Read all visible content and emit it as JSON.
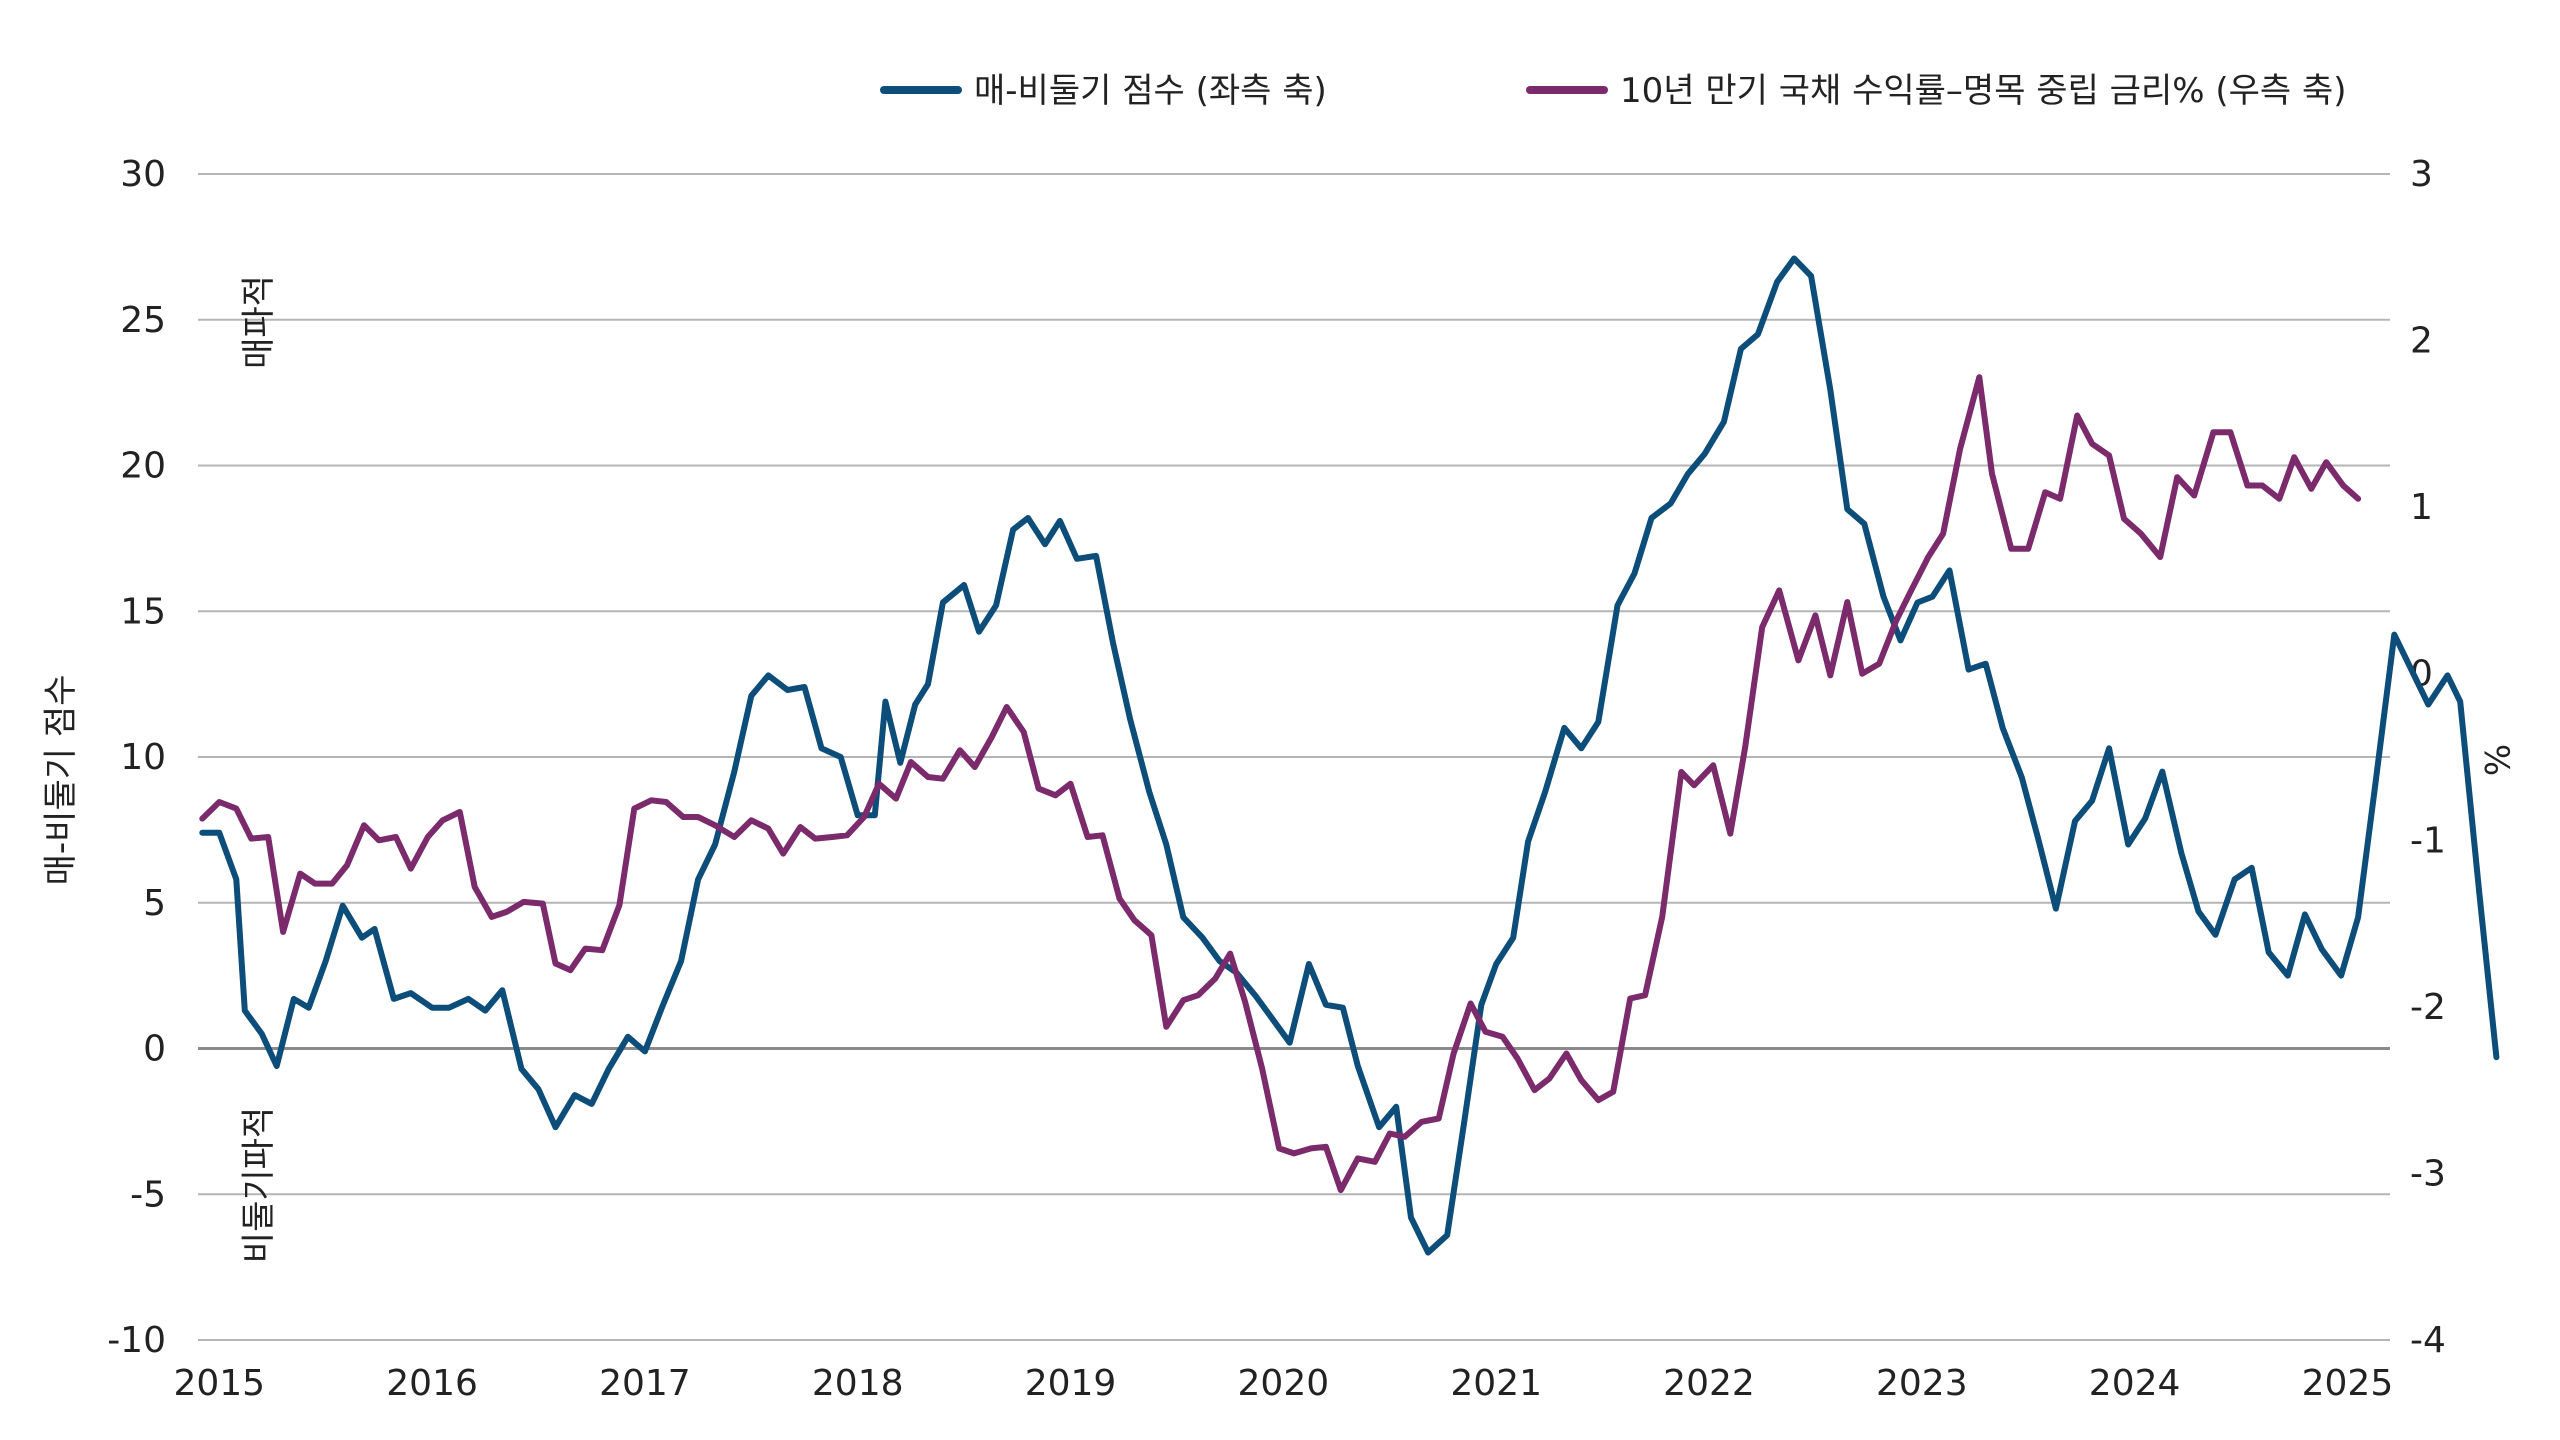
{
  "chart_data": {
    "type": "line",
    "x_ticks": [
      "2015",
      "2016",
      "2017",
      "2018",
      "2019",
      "2020",
      "2021",
      "2022",
      "2023",
      "2024",
      "2025"
    ],
    "xlim": [
      2014.9,
      2025.2
    ],
    "y_left": {
      "label": "매-비둘기 점수",
      "lim": [
        -10,
        30
      ],
      "ticks": [
        -10,
        -5,
        0,
        5,
        10,
        15,
        20,
        25,
        30
      ]
    },
    "y_right": {
      "label": "%",
      "lim": [
        -4,
        3
      ],
      "ticks": [
        -4,
        -3,
        -2,
        -1,
        0,
        1,
        2,
        3
      ]
    },
    "annotations": {
      "hawkish": "매파적",
      "dovish": "비둘기파적"
    },
    "grid": true,
    "legend_position": "top-right",
    "series": [
      {
        "name": "매-비둘기 점수 (좌측 축)",
        "axis": "left",
        "color": "#0d4d7a",
        "points": [
          [
            2014.92,
            7.4
          ],
          [
            2015.0,
            7.4
          ],
          [
            2015.08,
            5.8
          ],
          [
            2015.12,
            1.3
          ],
          [
            2015.2,
            0.5
          ],
          [
            2015.27,
            -0.6
          ],
          [
            2015.35,
            1.7
          ],
          [
            2015.42,
            1.4
          ],
          [
            2015.5,
            3.0
          ],
          [
            2015.58,
            4.9
          ],
          [
            2015.67,
            3.8
          ],
          [
            2015.73,
            4.1
          ],
          [
            2015.82,
            1.7
          ],
          [
            2015.9,
            1.9
          ],
          [
            2016.0,
            1.4
          ],
          [
            2016.08,
            1.4
          ],
          [
            2016.17,
            1.7
          ],
          [
            2016.25,
            1.3
          ],
          [
            2016.33,
            2.0
          ],
          [
            2016.42,
            -0.7
          ],
          [
            2016.5,
            -1.4
          ],
          [
            2016.58,
            -2.7
          ],
          [
            2016.67,
            -1.6
          ],
          [
            2016.75,
            -1.9
          ],
          [
            2016.83,
            -0.7
          ],
          [
            2016.92,
            0.4
          ],
          [
            2017.0,
            -0.1
          ],
          [
            2017.08,
            1.4
          ],
          [
            2017.17,
            3.0
          ],
          [
            2017.25,
            5.8
          ],
          [
            2017.33,
            7.0
          ],
          [
            2017.42,
            9.5
          ],
          [
            2017.5,
            12.1
          ],
          [
            2017.58,
            12.8
          ],
          [
            2017.67,
            12.3
          ],
          [
            2017.75,
            12.4
          ],
          [
            2017.83,
            10.3
          ],
          [
            2017.92,
            10.0
          ],
          [
            2018.0,
            8.0
          ],
          [
            2018.08,
            8.0
          ],
          [
            2018.13,
            11.9
          ],
          [
            2018.2,
            9.8
          ],
          [
            2018.27,
            11.8
          ],
          [
            2018.33,
            12.5
          ],
          [
            2018.4,
            15.3
          ],
          [
            2018.5,
            15.9
          ],
          [
            2018.57,
            14.3
          ],
          [
            2018.65,
            15.2
          ],
          [
            2018.73,
            17.8
          ],
          [
            2018.8,
            18.2
          ],
          [
            2018.88,
            17.3
          ],
          [
            2018.95,
            18.1
          ],
          [
            2019.03,
            16.8
          ],
          [
            2019.12,
            16.9
          ],
          [
            2019.2,
            13.9
          ],
          [
            2019.28,
            11.3
          ],
          [
            2019.37,
            8.8
          ],
          [
            2019.45,
            7.0
          ],
          [
            2019.53,
            4.5
          ],
          [
            2019.62,
            3.8
          ],
          [
            2019.7,
            3.0
          ],
          [
            2019.78,
            2.6
          ],
          [
            2019.87,
            1.8
          ],
          [
            2019.95,
            1.0
          ],
          [
            2020.03,
            0.2
          ],
          [
            2020.12,
            2.9
          ],
          [
            2020.2,
            1.5
          ],
          [
            2020.28,
            1.4
          ],
          [
            2020.35,
            -0.6
          ],
          [
            2020.45,
            -2.7
          ],
          [
            2020.53,
            -2.0
          ],
          [
            2020.6,
            -5.8
          ],
          [
            2020.68,
            -7.0
          ],
          [
            2020.77,
            -6.4
          ],
          [
            2020.85,
            -2.5
          ],
          [
            2020.93,
            1.5
          ],
          [
            2021.0,
            2.9
          ],
          [
            2021.08,
            3.8
          ],
          [
            2021.15,
            7.1
          ],
          [
            2021.23,
            8.8
          ],
          [
            2021.32,
            11.0
          ],
          [
            2021.4,
            10.3
          ],
          [
            2021.48,
            11.2
          ],
          [
            2021.57,
            15.2
          ],
          [
            2021.65,
            16.3
          ],
          [
            2021.73,
            18.2
          ],
          [
            2021.82,
            18.7
          ],
          [
            2021.9,
            19.7
          ],
          [
            2021.98,
            20.4
          ],
          [
            2022.07,
            21.5
          ],
          [
            2022.15,
            24.0
          ],
          [
            2022.23,
            24.5
          ],
          [
            2022.32,
            26.3
          ],
          [
            2022.4,
            27.1
          ],
          [
            2022.48,
            26.5
          ],
          [
            2022.57,
            22.6
          ],
          [
            2022.65,
            18.5
          ],
          [
            2022.73,
            18.0
          ],
          [
            2022.82,
            15.5
          ],
          [
            2022.9,
            14.0
          ],
          [
            2022.98,
            15.3
          ],
          [
            2023.05,
            15.5
          ],
          [
            2023.13,
            16.4
          ],
          [
            2023.22,
            13.0
          ],
          [
            2023.3,
            13.2
          ],
          [
            2023.38,
            11.0
          ],
          [
            2023.47,
            9.3
          ],
          [
            2023.55,
            7.1
          ],
          [
            2023.63,
            4.8
          ],
          [
            2023.72,
            7.8
          ],
          [
            2023.8,
            8.5
          ],
          [
            2023.88,
            10.3
          ],
          [
            2023.97,
            7.0
          ],
          [
            2024.05,
            7.9
          ],
          [
            2024.13,
            9.5
          ],
          [
            2024.22,
            6.7
          ],
          [
            2024.3,
            4.7
          ],
          [
            2024.38,
            3.9
          ],
          [
            2024.47,
            5.8
          ],
          [
            2024.55,
            6.2
          ],
          [
            2024.63,
            3.3
          ],
          [
            2024.72,
            2.5
          ],
          [
            2024.8,
            4.6
          ],
          [
            2024.88,
            3.4
          ],
          [
            2024.97,
            2.5
          ],
          [
            2025.05,
            4.5
          ],
          [
            2025.13,
            9.0
          ],
          [
            2025.22,
            14.2
          ],
          [
            2025.3,
            13.0
          ],
          [
            2025.38,
            11.8
          ],
          [
            2025.47,
            12.8
          ],
          [
            2025.53,
            11.9
          ],
          [
            2025.62,
            5.3
          ],
          [
            2025.7,
            -0.3
          ]
        ]
      },
      {
        "name": "10년 만기 국채 수익률–명목 중립 금리% (우측 축)",
        "axis": "right",
        "color": "#7b2a6b",
        "points": [
          [
            2014.92,
            -0.87
          ],
          [
            2015.0,
            -0.77
          ],
          [
            2015.08,
            -0.81
          ],
          [
            2015.15,
            -0.99
          ],
          [
            2015.23,
            -0.98
          ],
          [
            2015.3,
            -1.55
          ],
          [
            2015.38,
            -1.2
          ],
          [
            2015.45,
            -1.26
          ],
          [
            2015.53,
            -1.26
          ],
          [
            2015.6,
            -1.15
          ],
          [
            2015.68,
            -0.91
          ],
          [
            2015.75,
            -1.0
          ],
          [
            2015.83,
            -0.98
          ],
          [
            2015.9,
            -1.17
          ],
          [
            2015.98,
            -0.98
          ],
          [
            2016.05,
            -0.88
          ],
          [
            2016.13,
            -0.83
          ],
          [
            2016.2,
            -1.28
          ],
          [
            2016.28,
            -1.46
          ],
          [
            2016.35,
            -1.43
          ],
          [
            2016.43,
            -1.37
          ],
          [
            2016.52,
            -1.38
          ],
          [
            2016.58,
            -1.74
          ],
          [
            2016.65,
            -1.78
          ],
          [
            2016.72,
            -1.65
          ],
          [
            2016.8,
            -1.66
          ],
          [
            2016.88,
            -1.39
          ],
          [
            2016.95,
            -0.81
          ],
          [
            2017.03,
            -0.76
          ],
          [
            2017.1,
            -0.77
          ],
          [
            2017.18,
            -0.86
          ],
          [
            2017.25,
            -0.86
          ],
          [
            2017.33,
            -0.91
          ],
          [
            2017.42,
            -0.98
          ],
          [
            2017.5,
            -0.88
          ],
          [
            2017.58,
            -0.93
          ],
          [
            2017.65,
            -1.08
          ],
          [
            2017.73,
            -0.92
          ],
          [
            2017.8,
            -0.99
          ],
          [
            2017.88,
            -0.98
          ],
          [
            2017.95,
            -0.97
          ],
          [
            2018.03,
            -0.86
          ],
          [
            2018.1,
            -0.66
          ],
          [
            2018.18,
            -0.75
          ],
          [
            2018.25,
            -0.53
          ],
          [
            2018.33,
            -0.62
          ],
          [
            2018.4,
            -0.63
          ],
          [
            2018.48,
            -0.46
          ],
          [
            2018.55,
            -0.56
          ],
          [
            2018.63,
            -0.38
          ],
          [
            2018.7,
            -0.2
          ],
          [
            2018.78,
            -0.35
          ],
          [
            2018.85,
            -0.69
          ],
          [
            2018.93,
            -0.73
          ],
          [
            2019.0,
            -0.66
          ],
          [
            2019.08,
            -0.98
          ],
          [
            2019.15,
            -0.97
          ],
          [
            2019.23,
            -1.35
          ],
          [
            2019.3,
            -1.48
          ],
          [
            2019.38,
            -1.57
          ],
          [
            2019.45,
            -2.12
          ],
          [
            2019.53,
            -1.96
          ],
          [
            2019.6,
            -1.93
          ],
          [
            2019.68,
            -1.83
          ],
          [
            2019.75,
            -1.68
          ],
          [
            2019.82,
            -1.97
          ],
          [
            2019.9,
            -2.37
          ],
          [
            2019.98,
            -2.85
          ],
          [
            2020.05,
            -2.88
          ],
          [
            2020.13,
            -2.85
          ],
          [
            2020.2,
            -2.84
          ],
          [
            2020.27,
            -3.1
          ],
          [
            2020.35,
            -2.91
          ],
          [
            2020.43,
            -2.93
          ],
          [
            2020.5,
            -2.76
          ],
          [
            2020.57,
            -2.78
          ],
          [
            2020.65,
            -2.69
          ],
          [
            2020.73,
            -2.67
          ],
          [
            2020.8,
            -2.28
          ],
          [
            2020.88,
            -1.98
          ],
          [
            2020.95,
            -2.15
          ],
          [
            2021.03,
            -2.18
          ],
          [
            2021.1,
            -2.31
          ],
          [
            2021.18,
            -2.5
          ],
          [
            2021.25,
            -2.43
          ],
          [
            2021.33,
            -2.28
          ],
          [
            2021.4,
            -2.44
          ],
          [
            2021.48,
            -2.56
          ],
          [
            2021.55,
            -2.51
          ],
          [
            2021.63,
            -1.95
          ],
          [
            2021.7,
            -1.93
          ],
          [
            2021.78,
            -1.46
          ],
          [
            2021.87,
            -0.59
          ],
          [
            2021.93,
            -0.67
          ],
          [
            2022.02,
            -0.55
          ],
          [
            2022.1,
            -0.96
          ],
          [
            2022.17,
            -0.44
          ],
          [
            2022.25,
            0.28
          ],
          [
            2022.33,
            0.5
          ],
          [
            2022.42,
            0.08
          ],
          [
            2022.5,
            0.35
          ],
          [
            2022.57,
            -0.01
          ],
          [
            2022.65,
            0.43
          ],
          [
            2022.72,
            0.0
          ],
          [
            2022.8,
            0.06
          ],
          [
            2022.88,
            0.32
          ],
          [
            2022.95,
            0.5
          ],
          [
            2023.03,
            0.7
          ],
          [
            2023.1,
            0.84
          ],
          [
            2023.18,
            1.35
          ],
          [
            2023.27,
            1.78
          ],
          [
            2023.33,
            1.2
          ],
          [
            2023.42,
            0.75
          ],
          [
            2023.5,
            0.75
          ],
          [
            2023.58,
            1.09
          ],
          [
            2023.65,
            1.05
          ],
          [
            2023.73,
            1.55
          ],
          [
            2023.8,
            1.38
          ],
          [
            2023.88,
            1.31
          ],
          [
            2023.95,
            0.93
          ],
          [
            2024.03,
            0.84
          ],
          [
            2024.12,
            0.7
          ],
          [
            2024.2,
            1.18
          ],
          [
            2024.28,
            1.07
          ],
          [
            2024.37,
            1.45
          ],
          [
            2024.45,
            1.45
          ],
          [
            2024.53,
            1.13
          ],
          [
            2024.6,
            1.13
          ],
          [
            2024.68,
            1.05
          ],
          [
            2024.75,
            1.3
          ],
          [
            2024.83,
            1.11
          ],
          [
            2024.9,
            1.27
          ],
          [
            2024.98,
            1.13
          ],
          [
            2025.05,
            1.05
          ]
        ]
      }
    ]
  }
}
